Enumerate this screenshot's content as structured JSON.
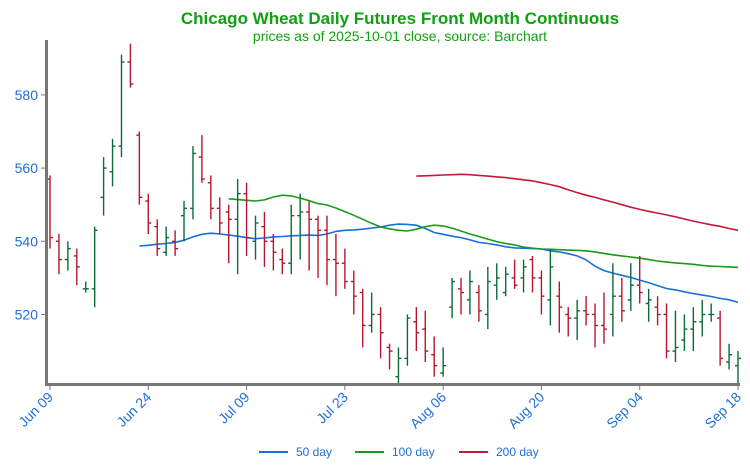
{
  "chart_data": {
    "type": "ohlc",
    "title": "Chicago Wheat Daily Futures Front Month Continuous",
    "subtitle": "prices as of 2025-10-01 close, source: Barchart",
    "title_color": "#11a011",
    "tick_color": "#1e6fd6",
    "up_color": "#0a6b3c",
    "down_color": "#b5182e",
    "ylim": [
      501,
      595
    ],
    "y_ticks": [
      520,
      540,
      560,
      580
    ],
    "grid": false,
    "legend_position": "bottom-center",
    "x_ticks": [
      {
        "label": "Jun 09",
        "index": 0
      },
      {
        "label": "Jun 24",
        "index": 11
      },
      {
        "label": "Jul 09",
        "index": 22
      },
      {
        "label": "Jul 23",
        "index": 33
      },
      {
        "label": "Aug 06",
        "index": 44
      },
      {
        "label": "Aug 20",
        "index": 55
      },
      {
        "label": "Sep 04",
        "index": 66
      },
      {
        "label": "Sep 18",
        "index": 77
      }
    ],
    "ohlc": [
      [
        557,
        558,
        538,
        541
      ],
      [
        540,
        542,
        531,
        535
      ],
      [
        535,
        540,
        532,
        538
      ],
      [
        536,
        538,
        528,
        533
      ],
      [
        527,
        529,
        526,
        527
      ],
      [
        527,
        544,
        522,
        543
      ],
      [
        552,
        563,
        547,
        560
      ],
      [
        559,
        568,
        555,
        566
      ],
      [
        566,
        591,
        563,
        589
      ],
      [
        589,
        594,
        582,
        583
      ],
      [
        569,
        570,
        550,
        552
      ],
      [
        551,
        553,
        542,
        545
      ],
      [
        544,
        546,
        536,
        538
      ],
      [
        537,
        544,
        536,
        541
      ],
      [
        540,
        543,
        536,
        538
      ],
      [
        547,
        551,
        540,
        549
      ],
      [
        549,
        566,
        546,
        564
      ],
      [
        563,
        569,
        556,
        557
      ],
      [
        556,
        558,
        546,
        549
      ],
      [
        549,
        552,
        542,
        545
      ],
      [
        548,
        550,
        534,
        546
      ],
      [
        546,
        557,
        531,
        553
      ],
      [
        553,
        556,
        536,
        541
      ],
      [
        540,
        547,
        535,
        545
      ],
      [
        544,
        548,
        533,
        540
      ],
      [
        540,
        542,
        532,
        537
      ],
      [
        535,
        538,
        531,
        534
      ],
      [
        534,
        550,
        531,
        547
      ],
      [
        547,
        553,
        535,
        548
      ],
      [
        548,
        551,
        532,
        546
      ],
      [
        546,
        547,
        530,
        543
      ],
      [
        543,
        547,
        528,
        535
      ],
      [
        535,
        542,
        525,
        534
      ],
      [
        534,
        538,
        527,
        529
      ],
      [
        529,
        532,
        520,
        525
      ],
      [
        526,
        527,
        511,
        517
      ],
      [
        517,
        526,
        515,
        520
      ],
      [
        520,
        522,
        508,
        515
      ],
      [
        511,
        512,
        505,
        510
      ],
      [
        503,
        511,
        501,
        508
      ],
      [
        508,
        520,
        506,
        519
      ],
      [
        518,
        522,
        510,
        515
      ],
      [
        516,
        521,
        507,
        510
      ],
      [
        509,
        514,
        503,
        506
      ],
      [
        504,
        511,
        503,
        506
      ],
      [
        522,
        530,
        519,
        529
      ],
      [
        527,
        530,
        520,
        526
      ],
      [
        524,
        532,
        520,
        529
      ],
      [
        526,
        528,
        518,
        521
      ],
      [
        520,
        533,
        516,
        529
      ],
      [
        528,
        534,
        524,
        530
      ],
      [
        526,
        533,
        525,
        531
      ],
      [
        530,
        535,
        527,
        528
      ],
      [
        530,
        535,
        526,
        533
      ],
      [
        535,
        536,
        526,
        530
      ],
      [
        530,
        532,
        520,
        525
      ],
      [
        524,
        538,
        517,
        533
      ],
      [
        525,
        529,
        515,
        522
      ],
      [
        520,
        522,
        514,
        519
      ],
      [
        519,
        524,
        513,
        521
      ],
      [
        521,
        525,
        517,
        520
      ],
      [
        520,
        523,
        511,
        517
      ],
      [
        517,
        526,
        512,
        516
      ],
      [
        520,
        534,
        514,
        525
      ],
      [
        525,
        530,
        518,
        521
      ],
      [
        524,
        534,
        521,
        528
      ],
      [
        528,
        536,
        523,
        526
      ],
      [
        523,
        527,
        518,
        524
      ],
      [
        522,
        525,
        517,
        520
      ],
      [
        520,
        523,
        508,
        510
      ],
      [
        510,
        521,
        507,
        511
      ],
      [
        513,
        520,
        510,
        516
      ],
      [
        516,
        522,
        510,
        518
      ],
      [
        518,
        524,
        514,
        520
      ],
      [
        520,
        523,
        518,
        520
      ],
      [
        519,
        521,
        506,
        508
      ],
      [
        507,
        512,
        505,
        509
      ],
      [
        506,
        510,
        501,
        508
      ]
    ],
    "series": [
      {
        "name": "50 day",
        "color": "#1a6fd6",
        "values": [
          538.7,
          538.9,
          539.2,
          539.4,
          539.7,
          540.3,
          541.2,
          541.9,
          542.2,
          542.0,
          541.7,
          541.4,
          541.0,
          540.7,
          540.9,
          541.2,
          541.3,
          541.5,
          541.6,
          541.7,
          541.6,
          542.0,
          542.7,
          543.0,
          543.1,
          543.3,
          543.6,
          543.9,
          544.4,
          544.7,
          544.6,
          544.4,
          543.5,
          542.4,
          541.9,
          541.4,
          541.0,
          540.4,
          539.7,
          539.4,
          539.0,
          538.5,
          538.2,
          538.1,
          538.0,
          537.9,
          537.4,
          537.1,
          536.6,
          536.0,
          534.9,
          533.2,
          532.0,
          531.3,
          530.7,
          530.1,
          529.4,
          528.7,
          527.9,
          527.1,
          526.7,
          526.2,
          525.7,
          525.3,
          524.9,
          524.4,
          524.0,
          523.3
        ]
      },
      {
        "name": "100 day",
        "color": "#1a9a1a",
        "values": [
          551.6,
          551.4,
          551.2,
          551.0,
          551.3,
          552.1,
          552.6,
          552.4,
          551.8,
          551.1,
          550.3,
          549.9,
          549.1,
          548.1,
          547.1,
          546.0,
          544.9,
          543.9,
          543.4,
          543.0,
          542.8,
          543.3,
          544.0,
          544.4,
          544.2,
          543.6,
          542.8,
          542.0,
          541.3,
          540.6,
          539.9,
          539.4,
          539.0,
          538.4,
          538.1,
          537.9,
          537.8,
          537.7,
          537.6,
          537.5,
          537.4,
          537.1,
          536.7,
          536.3,
          536.0,
          535.7,
          535.4,
          535.0,
          534.6,
          534.3,
          534.1,
          533.9,
          533.7,
          533.4,
          533.2,
          533.1,
          533.0,
          532.9
        ]
      },
      {
        "name": "200 day",
        "color": "#c5183a",
        "values": [
          557.8,
          557.9,
          558.0,
          558.1,
          558.2,
          558.3,
          558.2,
          558.0,
          557.8,
          557.6,
          557.4,
          557.1,
          556.8,
          556.5,
          556.0,
          555.5,
          554.9,
          554.1,
          553.3,
          552.6,
          552.0,
          551.3,
          550.7,
          550.0,
          549.3,
          548.7,
          548.2,
          547.7,
          547.2,
          546.7,
          546.1,
          545.5,
          545.0,
          544.5,
          544.1,
          543.5,
          543.0
        ]
      }
    ]
  },
  "legend": {
    "items": [
      {
        "label": "50 day",
        "color": "#1a6fd6"
      },
      {
        "label": "100 day",
        "color": "#1a9a1a"
      },
      {
        "label": "200 day",
        "color": "#c5183a"
      }
    ]
  }
}
